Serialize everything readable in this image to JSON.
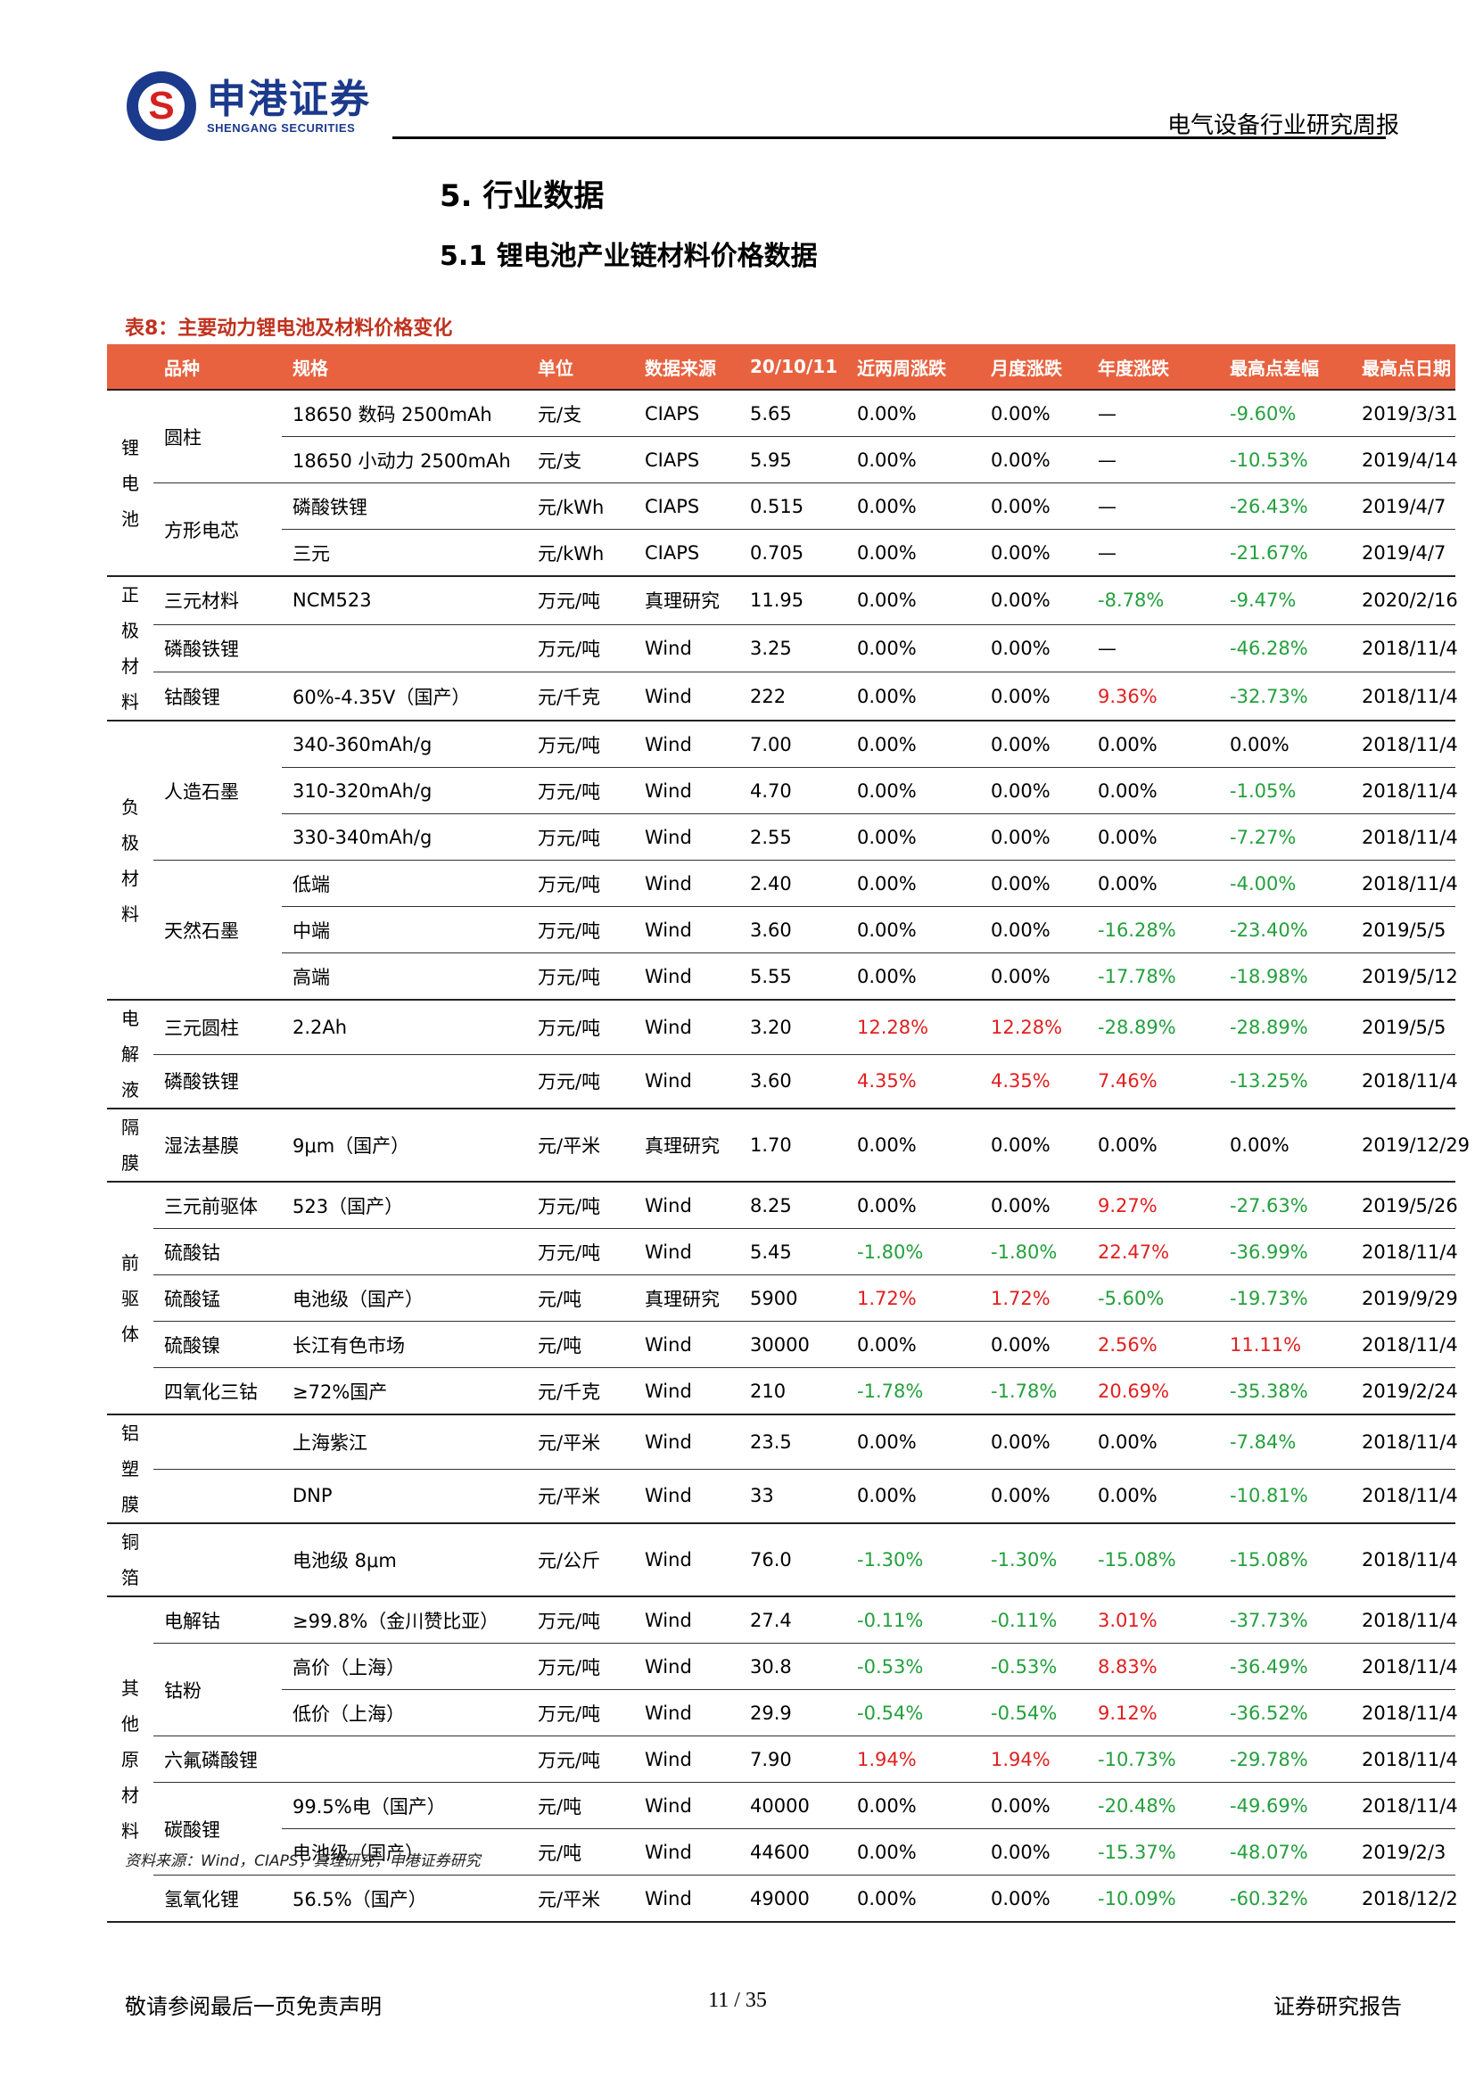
{
  "header": {
    "logo_cn": "申港证券",
    "logo_en": "SHENGANG SECURITIES",
    "title": "电气设备行业研究周报"
  },
  "section_title": "5. 行业数据",
  "subsection_title": "5.1 锂电池产业链材料价格数据",
  "table_caption": "表8：主要动力锂电池及材料价格变化",
  "columns": [
    "品种",
    "规格",
    "单位",
    "数据来源",
    "20/10/11",
    "近两周涨跌",
    "月度涨跌",
    "年度涨跌",
    "最高点差幅",
    "最高点日期"
  ],
  "groups": [
    {
      "category": "锂电池",
      "rows": [
        {
          "variety": "圆柱",
          "spec": "18650 数码 2500mAh",
          "unit": "元/支",
          "source": "CIAPS",
          "price": "5.65",
          "w2": "0.00%",
          "m": "0.00%",
          "y": "—",
          "peak": "-9.60%",
          "date": "2019/3/31"
        },
        {
          "variety": "",
          "spec": "18650 小动力 2500mAh",
          "unit": "元/支",
          "source": "CIAPS",
          "price": "5.95",
          "w2": "0.00%",
          "m": "0.00%",
          "y": "—",
          "peak": "-10.53%",
          "date": "2019/4/14"
        },
        {
          "variety": "方形电芯",
          "spec": "磷酸铁锂",
          "unit": "元/kWh",
          "source": "CIAPS",
          "price": "0.515",
          "w2": "0.00%",
          "m": "0.00%",
          "y": "—",
          "peak": "-26.43%",
          "date": "2019/4/7"
        },
        {
          "variety": "",
          "spec": "三元",
          "unit": "元/kWh",
          "source": "CIAPS",
          "price": "0.705",
          "w2": "0.00%",
          "m": "0.00%",
          "y": "—",
          "peak": "-21.67%",
          "date": "2019/4/7"
        }
      ]
    },
    {
      "category": "正极材料",
      "rows": [
        {
          "variety": "三元材料",
          "spec": "NCM523",
          "unit": "万元/吨",
          "source": "真理研究",
          "price": "11.95",
          "w2": "0.00%",
          "m": "0.00%",
          "y": "-8.78%",
          "peak": "-9.47%",
          "date": "2020/2/16"
        },
        {
          "variety": "磷酸铁锂",
          "spec": "",
          "unit": "万元/吨",
          "source": "Wind",
          "price": "3.25",
          "w2": "0.00%",
          "m": "0.00%",
          "y": "—",
          "peak": "-46.28%",
          "date": "2018/11/4"
        },
        {
          "variety": "钴酸锂",
          "spec": "60%-4.35V（国产）",
          "unit": "元/千克",
          "source": "Wind",
          "price": "222",
          "w2": "0.00%",
          "m": "0.00%",
          "y": "9.36%",
          "peak": "-32.73%",
          "date": "2018/11/4"
        }
      ]
    },
    {
      "category": "负极材料",
      "rows": [
        {
          "variety": "人造石墨",
          "spec": "340-360mAh/g",
          "unit": "万元/吨",
          "source": "Wind",
          "price": "7.00",
          "w2": "0.00%",
          "m": "0.00%",
          "y": "0.00%",
          "peak": "0.00%",
          "date": "2018/11/4"
        },
        {
          "variety": "",
          "spec": "310-320mAh/g",
          "unit": "万元/吨",
          "source": "Wind",
          "price": "4.70",
          "w2": "0.00%",
          "m": "0.00%",
          "y": "0.00%",
          "peak": "-1.05%",
          "date": "2018/11/4"
        },
        {
          "variety": "",
          "spec": "330-340mAh/g",
          "unit": "万元/吨",
          "source": "Wind",
          "price": "2.55",
          "w2": "0.00%",
          "m": "0.00%",
          "y": "0.00%",
          "peak": "-7.27%",
          "date": "2018/11/4"
        },
        {
          "variety": "天然石墨",
          "spec": "低端",
          "unit": "万元/吨",
          "source": "Wind",
          "price": "2.40",
          "w2": "0.00%",
          "m": "0.00%",
          "y": "0.00%",
          "peak": "-4.00%",
          "date": "2018/11/4"
        },
        {
          "variety": "",
          "spec": "中端",
          "unit": "万元/吨",
          "source": "Wind",
          "price": "3.60",
          "w2": "0.00%",
          "m": "0.00%",
          "y": "-16.28%",
          "peak": "-23.40%",
          "date": "2019/5/5"
        },
        {
          "variety": "",
          "spec": "高端",
          "unit": "万元/吨",
          "source": "Wind",
          "price": "5.55",
          "w2": "0.00%",
          "m": "0.00%",
          "y": "-17.78%",
          "peak": "-18.98%",
          "date": "2019/5/12"
        }
      ]
    },
    {
      "category": "电解液",
      "rows": [
        {
          "variety": "三元圆柱",
          "spec": "2.2Ah",
          "unit": "万元/吨",
          "source": "Wind",
          "price": "3.20",
          "w2": "12.28%",
          "m": "12.28%",
          "y": "-28.89%",
          "peak": "-28.89%",
          "date": "2019/5/5"
        },
        {
          "variety": "磷酸铁锂",
          "spec": "",
          "unit": "万元/吨",
          "source": "Wind",
          "price": "3.60",
          "w2": "4.35%",
          "m": "4.35%",
          "y": "7.46%",
          "peak": "-13.25%",
          "date": "2018/11/4"
        }
      ]
    },
    {
      "category": "隔膜",
      "rows": [
        {
          "variety": "湿法基膜",
          "spec": "9μm（国产）",
          "unit": "元/平米",
          "source": "真理研究",
          "price": "1.70",
          "w2": "0.00%",
          "m": "0.00%",
          "y": "0.00%",
          "peak": "0.00%",
          "date": "2019/12/29"
        }
      ]
    },
    {
      "category": "前驱体",
      "rows": [
        {
          "variety": "三元前驱体",
          "spec": "523（国产）",
          "unit": "万元/吨",
          "source": "Wind",
          "price": "8.25",
          "w2": "0.00%",
          "m": "0.00%",
          "y": "9.27%",
          "peak": "-27.63%",
          "date": "2019/5/26"
        },
        {
          "variety": "硫酸钴",
          "spec": "",
          "unit": "万元/吨",
          "source": "Wind",
          "price": "5.45",
          "w2": "-1.80%",
          "m": "-1.80%",
          "y": "22.47%",
          "peak": "-36.99%",
          "date": "2018/11/4"
        },
        {
          "variety": "硫酸锰",
          "spec": "电池级（国产）",
          "unit": "元/吨",
          "source": "真理研究",
          "price": "5900",
          "w2": "1.72%",
          "m": "1.72%",
          "y": "-5.60%",
          "peak": "-19.73%",
          "date": "2019/9/29"
        },
        {
          "variety": "硫酸镍",
          "spec": "长江有色市场",
          "unit": "元/吨",
          "source": "Wind",
          "price": "30000",
          "w2": "0.00%",
          "m": "0.00%",
          "y": "2.56%",
          "peak": "11.11%",
          "date": "2018/11/4"
        },
        {
          "variety": "四氧化三钴",
          "spec": "≥72%国产",
          "unit": "元/千克",
          "source": "Wind",
          "price": "210",
          "w2": "-1.78%",
          "m": "-1.78%",
          "y": "20.69%",
          "peak": "-35.38%",
          "date": "2019/2/24"
        }
      ]
    },
    {
      "category": "铝塑膜",
      "rows": [
        {
          "variety": "",
          "spec": "上海紫江",
          "unit": "元/平米",
          "source": "Wind",
          "price": "23.5",
          "w2": "0.00%",
          "m": "0.00%",
          "y": "0.00%",
          "peak": "-7.84%",
          "date": "2018/11/4"
        },
        {
          "variety": "",
          "spec": "DNP",
          "unit": "元/平米",
          "source": "Wind",
          "price": "33",
          "w2": "0.00%",
          "m": "0.00%",
          "y": "0.00%",
          "peak": "-10.81%",
          "date": "2018/11/4"
        }
      ]
    },
    {
      "category": "铜箔",
      "rows": [
        {
          "variety": "",
          "spec": "电池级 8μm",
          "unit": "元/公斤",
          "source": "Wind",
          "price": "76.0",
          "w2": "-1.30%",
          "m": "-1.30%",
          "y": "-15.08%",
          "peak": "-15.08%",
          "date": "2018/11/4"
        }
      ]
    },
    {
      "category": "其他原材料",
      "rows": [
        {
          "variety": "电解钴",
          "spec": "≥99.8%（金川赞比亚）",
          "unit": "万元/吨",
          "source": "Wind",
          "price": "27.4",
          "w2": "-0.11%",
          "m": "-0.11%",
          "y": "3.01%",
          "peak": "-37.73%",
          "date": "2018/11/4"
        },
        {
          "variety": "钴粉",
          "spec": "高价（上海）",
          "unit": "万元/吨",
          "source": "Wind",
          "price": "30.8",
          "w2": "-0.53%",
          "m": "-0.53%",
          "y": "8.83%",
          "peak": "-36.49%",
          "date": "2018/11/4"
        },
        {
          "variety": "",
          "spec": "低价（上海）",
          "unit": "万元/吨",
          "source": "Wind",
          "price": "29.9",
          "w2": "-0.54%",
          "m": "-0.54%",
          "y": "9.12%",
          "peak": "-36.52%",
          "date": "2018/11/4"
        },
        {
          "variety": "六氟磷酸锂",
          "spec": "",
          "unit": "万元/吨",
          "source": "Wind",
          "price": "7.90",
          "w2": "1.94%",
          "m": "1.94%",
          "y": "-10.73%",
          "peak": "-29.78%",
          "date": "2018/11/4"
        },
        {
          "variety": "碳酸锂",
          "spec": "99.5%电（国产）",
          "unit": "元/吨",
          "source": "Wind",
          "price": "40000",
          "w2": "0.00%",
          "m": "0.00%",
          "y": "-20.48%",
          "peak": "-49.69%",
          "date": "2018/11/4"
        },
        {
          "variety": "",
          "spec": "电池级（国产）",
          "unit": "元/吨",
          "source": "Wind",
          "price": "44600",
          "w2": "0.00%",
          "m": "0.00%",
          "y": "-15.37%",
          "peak": "-48.07%",
          "date": "2019/2/3"
        },
        {
          "variety": "氢氧化锂",
          "spec": "56.5%（国产）",
          "unit": "元/平米",
          "source": "Wind",
          "price": "49000",
          "w2": "0.00%",
          "m": "0.00%",
          "y": "-10.09%",
          "peak": "-60.32%",
          "date": "2018/12/2"
        }
      ]
    }
  ],
  "source_note": "资料来源：Wind，CIAPS，真理研究，申港证券研究",
  "footer": {
    "disclaimer": "敬请参阅最后一页免责声明",
    "page": "11 / 35",
    "doc_type": "证券研究报告"
  },
  "colors": {
    "header_bg": "#e8623f",
    "positive": "#e02020",
    "negative": "#23a03c",
    "caption": "#c0321e",
    "brand_blue": "#1c3a8c"
  }
}
